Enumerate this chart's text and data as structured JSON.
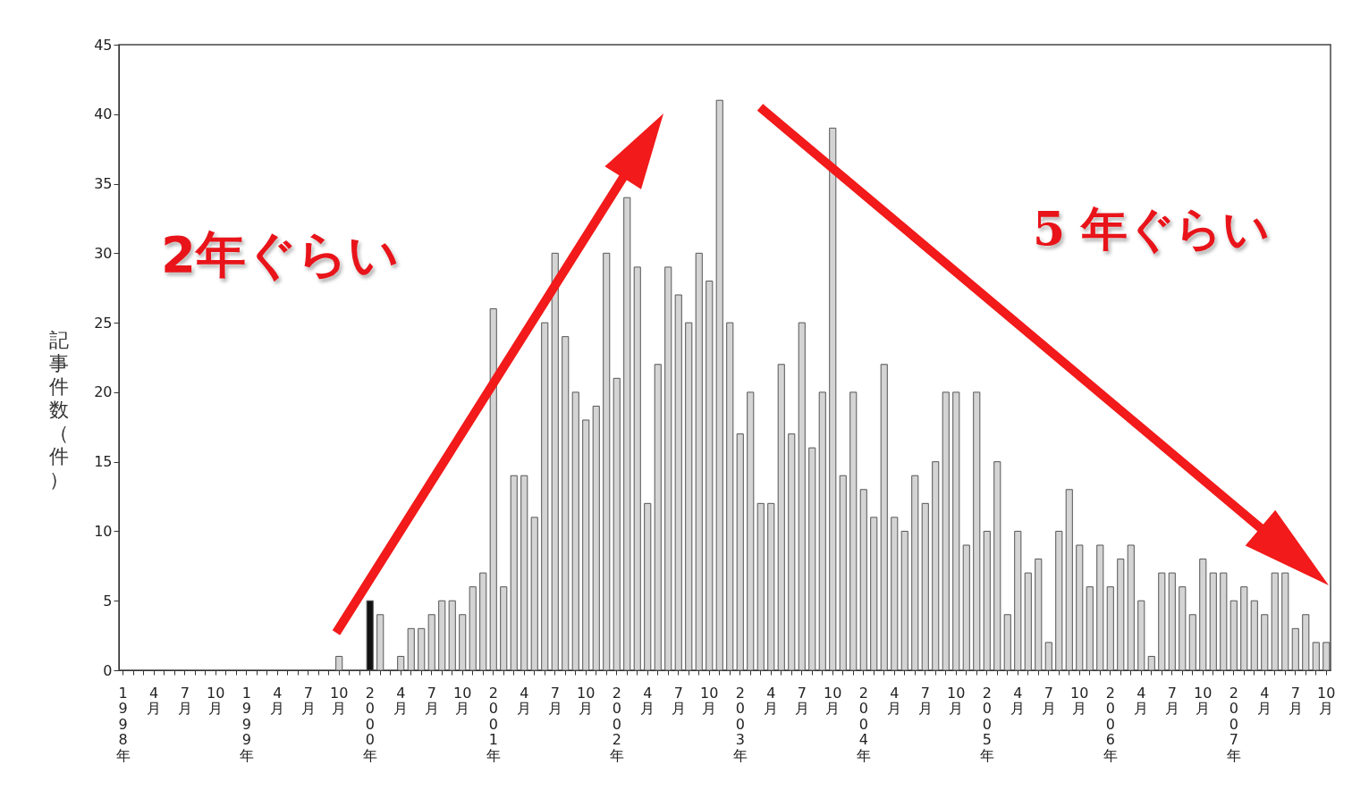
{
  "chart_data": {
    "type": "bar",
    "ylabel": "記事件数（件）",
    "categories": [
      "1998年",
      null,
      null,
      "4月",
      null,
      null,
      "7月",
      null,
      null,
      "10月",
      null,
      null,
      "1999年",
      null,
      null,
      "4月",
      null,
      null,
      "7月",
      null,
      null,
      "10月",
      null,
      null,
      "2000年",
      null,
      null,
      "4月",
      null,
      null,
      "7月",
      null,
      null,
      "10月",
      null,
      null,
      "2001年",
      null,
      null,
      "4月",
      null,
      null,
      "7月",
      null,
      null,
      "10月",
      null,
      null,
      "2002年",
      null,
      null,
      "4月",
      null,
      null,
      "7月",
      null,
      null,
      "10月",
      null,
      null,
      "2003年",
      null,
      null,
      "4月",
      null,
      null,
      "7月",
      null,
      null,
      "10月",
      null,
      null,
      "2004年",
      null,
      null,
      "4月",
      null,
      null,
      "7月",
      null,
      null,
      "10月",
      null,
      null,
      "2005年",
      null,
      null,
      "4月",
      null,
      null,
      "7月",
      null,
      null,
      "10月",
      null,
      null,
      "2006年",
      null,
      null,
      "4月",
      null,
      null,
      "7月",
      null,
      null,
      "10月",
      null,
      null,
      "2007年",
      null,
      null,
      "4月",
      null,
      null,
      "7月",
      null,
      null,
      "10月"
    ],
    "values": [
      0,
      0,
      0,
      0,
      0,
      0,
      0,
      0,
      0,
      0,
      0,
      0,
      0,
      0,
      0,
      0,
      0,
      0,
      0,
      0,
      0,
      1,
      0,
      0,
      5,
      4,
      0,
      1,
      3,
      3,
      4,
      5,
      5,
      4,
      6,
      7,
      26,
      6,
      14,
      14,
      11,
      25,
      30,
      24,
      20,
      18,
      19,
      30,
      21,
      34,
      29,
      12,
      22,
      29,
      27,
      25,
      30,
      28,
      41,
      25,
      17,
      20,
      12,
      12,
      22,
      17,
      25,
      16,
      20,
      39,
      14,
      20,
      13,
      11,
      22,
      11,
      10,
      14,
      12,
      15,
      20,
      20,
      9,
      20,
      10,
      15,
      4,
      10,
      7,
      8,
      2,
      10,
      13,
      9,
      6,
      9,
      6,
      8,
      9,
      5,
      1,
      7,
      7,
      6,
      4,
      8,
      7,
      7,
      5,
      6,
      5,
      4,
      7,
      7,
      3,
      4,
      2,
      2
    ],
    "colors": [
      "#d4d4d4",
      "#d4d4d4",
      "#d4d4d4",
      "#d4d4d4",
      "#d4d4d4",
      "#d4d4d4",
      "#d4d4d4",
      "#d4d4d4",
      "#d4d4d4",
      "#d4d4d4",
      "#d4d4d4",
      "#d4d4d4",
      "#d4d4d4",
      "#d4d4d4",
      "#d4d4d4",
      "#d4d4d4",
      "#d4d4d4",
      "#d4d4d4",
      "#d4d4d4",
      "#d4d4d4",
      "#d4d4d4",
      "#d4d4d4",
      "#d4d4d4",
      "#d4d4d4",
      "#111111",
      "#d4d4d4",
      "#d4d4d4",
      "#d4d4d4",
      "#d4d4d4",
      "#d4d4d4",
      "#d4d4d4",
      "#d4d4d4",
      "#d4d4d4",
      "#d4d4d4",
      "#d4d4d4",
      "#d4d4d4",
      "#d4d4d4",
      "#d4d4d4",
      "#d4d4d4",
      "#d4d4d4",
      "#d4d4d4",
      "#d4d4d4",
      "#d4d4d4",
      "#d4d4d4",
      "#d4d4d4",
      "#d4d4d4",
      "#d4d4d4",
      "#d4d4d4",
      "#d4d4d4",
      "#d4d4d4",
      "#d4d4d4",
      "#d4d4d4",
      "#d4d4d4",
      "#d4d4d4",
      "#d4d4d4",
      "#d4d4d4",
      "#d4d4d4",
      "#d4d4d4",
      "#d4d4d4",
      "#d4d4d4",
      "#d4d4d4",
      "#d4d4d4",
      "#d4d4d4",
      "#d4d4d4",
      "#d4d4d4",
      "#d4d4d4",
      "#d4d4d4",
      "#d4d4d4",
      "#d4d4d4",
      "#d4d4d4",
      "#d4d4d4",
      "#d4d4d4",
      "#d4d4d4",
      "#d4d4d4",
      "#d4d4d4",
      "#d4d4d4",
      "#d4d4d4",
      "#d4d4d4",
      "#d4d4d4",
      "#d4d4d4",
      "#d4d4d4",
      "#d4d4d4",
      "#d4d4d4",
      "#d4d4d4",
      "#d4d4d4",
      "#d4d4d4",
      "#d4d4d4",
      "#d4d4d4",
      "#d4d4d4",
      "#d4d4d4",
      "#d4d4d4",
      "#d4d4d4",
      "#d4d4d4",
      "#d4d4d4",
      "#d4d4d4",
      "#d4d4d4",
      "#d4d4d4",
      "#d4d4d4",
      "#d4d4d4",
      "#d4d4d4",
      "#d4d4d4",
      "#d4d4d4",
      "#d4d4d4",
      "#d4d4d4",
      "#d4d4d4",
      "#d4d4d4",
      "#d4d4d4",
      "#d4d4d4",
      "#d4d4d4",
      "#d4d4d4",
      "#d4d4d4",
      "#d4d4d4",
      "#d4d4d4",
      "#d4d4d4",
      "#d4d4d4",
      "#d4d4d4",
      "#d4d4d4",
      "#d4d4d4"
    ],
    "ylim": [
      0,
      45
    ],
    "yticks": [
      0,
      5,
      10,
      15,
      20,
      25,
      30,
      35,
      40,
      45
    ],
    "annotations": [
      "2年ぐらい",
      "5 年ぐらい"
    ]
  }
}
